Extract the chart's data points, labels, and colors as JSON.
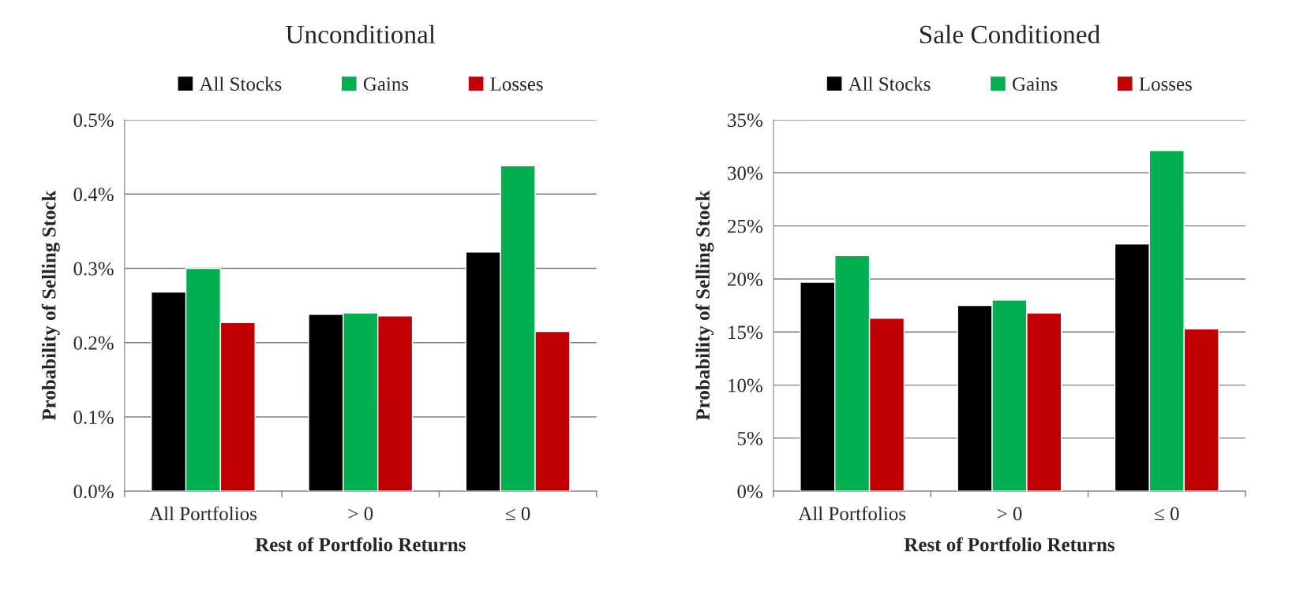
{
  "chart_data": [
    {
      "type": "bar",
      "title": "Unconditional",
      "xlabel": "Rest of Portfolio Returns",
      "ylabel": "Probability of Selling Stock",
      "categories": [
        "All Portfolios",
        "> 0",
        "≤ 0"
      ],
      "series": [
        {
          "name": "All Stocks",
          "color": "#000000",
          "values": [
            0.268,
            0.238,
            0.322
          ]
        },
        {
          "name": "Gains",
          "color": "#00b050",
          "values": [
            0.3,
            0.24,
            0.438
          ]
        },
        {
          "name": "Losses",
          "color": "#c00000",
          "values": [
            0.227,
            0.236,
            0.215
          ]
        }
      ],
      "ylim": [
        0,
        0.5
      ],
      "yticks": [
        {
          "value": 0,
          "label": "0.0%"
        },
        {
          "value": 0.1,
          "label": "0.1%"
        },
        {
          "value": 0.2,
          "label": "0.2%"
        },
        {
          "value": 0.3,
          "label": "0.3%"
        },
        {
          "value": 0.4,
          "label": "0.4%"
        },
        {
          "value": 0.5,
          "label": "0.5%"
        }
      ],
      "grid": "y",
      "legend": "top"
    },
    {
      "type": "bar",
      "title": "Sale Conditioned",
      "xlabel": "Rest of Portfolio Returns",
      "ylabel": "Probability of Selling Stock",
      "categories": [
        "All Portfolios",
        "> 0",
        "≤ 0"
      ],
      "series": [
        {
          "name": "All Stocks",
          "color": "#000000",
          "values": [
            19.7,
            17.5,
            23.3
          ]
        },
        {
          "name": "Gains",
          "color": "#00b050",
          "values": [
            22.2,
            18.0,
            32.1
          ]
        },
        {
          "name": "Losses",
          "color": "#c00000",
          "values": [
            16.3,
            16.8,
            15.3
          ]
        }
      ],
      "ylim": [
        0,
        35
      ],
      "yticks": [
        {
          "value": 0,
          "label": "0%"
        },
        {
          "value": 5,
          "label": "5%"
        },
        {
          "value": 10,
          "label": "10%"
        },
        {
          "value": 15,
          "label": "15%"
        },
        {
          "value": 20,
          "label": "20%"
        },
        {
          "value": 25,
          "label": "25%"
        },
        {
          "value": 30,
          "label": "30%"
        },
        {
          "value": 35,
          "label": "35%"
        }
      ],
      "grid": "y",
      "legend": "top"
    }
  ]
}
